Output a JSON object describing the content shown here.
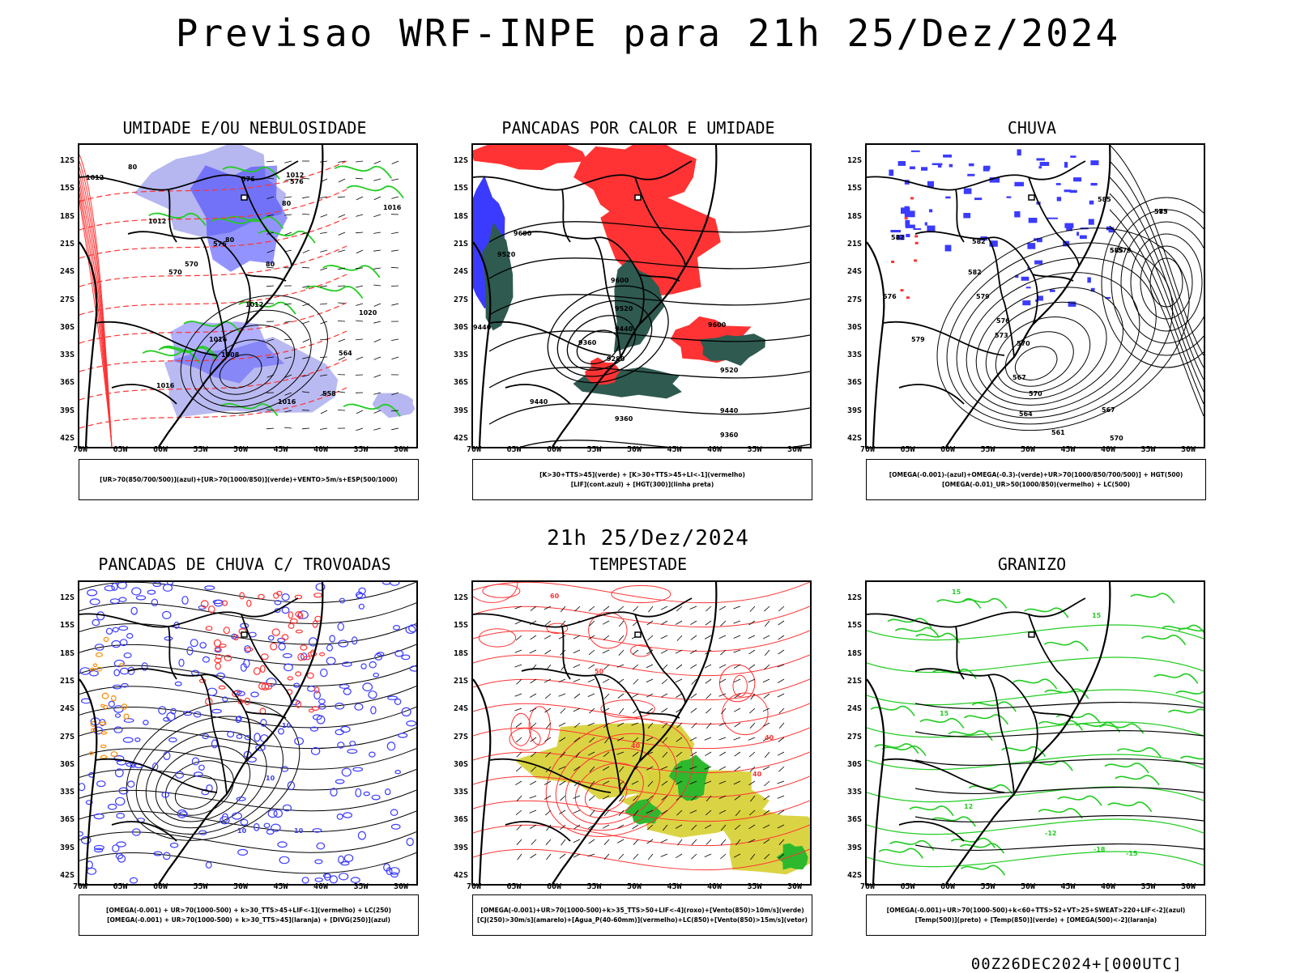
{
  "title": "Previsao WRF-INPE  para 21h 25/Dez/2024",
  "mid_time": "21h 25/Dez/2024",
  "footer": "00Z26DEC2024+[000UTC]",
  "lat_labels": [
    "12S",
    "15S",
    "18S",
    "21S",
    "24S",
    "27S",
    "30S",
    "33S",
    "36S",
    "39S",
    "42S"
  ],
  "lon_labels": [
    "70W",
    "65W",
    "60W",
    "55W",
    "50W",
    "45W",
    "40W",
    "35W",
    "30W"
  ],
  "panels": [
    {
      "title": "UMIDADE E/OU NEBULOSIDADE",
      "legend": [
        "[UR>70(850/700/500)](azul)+[UR>70(1000/850)](verde)+VENTO>5m/s+ESP(500/1000)"
      ],
      "contour_labels": [
        "1012",
        "1012",
        "1012",
        "1016",
        "1016",
        "1012",
        "1008",
        "1016",
        "1016",
        "1020",
        "570",
        "576",
        "576",
        "576",
        "558",
        "564",
        "570",
        "80",
        "80",
        "80",
        "80"
      ]
    },
    {
      "title": "PANCADAS POR CALOR E UMIDADE",
      "legend": [
        "[K>30+TTS>45](verde) + [K>30+TTS>45+LI<-1](vermelho)",
        "[LIF](cont.azul) + [HGT(300)](linha preta)"
      ],
      "contour_labels": [
        "9600",
        "9520",
        "9440",
        "9600",
        "9520",
        "9440",
        "9360",
        "9280",
        "9440",
        "9600",
        "9520",
        "9440",
        "9360",
        "9360"
      ]
    },
    {
      "title": "CHUVA",
      "legend": [
        "[OMEGA(-0.001)-(azul)+OMEGA(-0.3)-(verde)+UR>70(1000/850/700/500)] + HGT(500)",
        "[OMEGA(-0.01)_UR>50(1000/850)(vermelho) + LC(500)"
      ],
      "contour_labels": [
        "585",
        "585",
        "582",
        "582",
        "585",
        "582",
        "579",
        "579",
        "576",
        "573",
        "570",
        "567",
        "564",
        "561",
        "567",
        "570",
        "573",
        "576",
        "579",
        "585",
        "570"
      ]
    },
    {
      "title": "PANCADAS DE CHUVA C/ TROVOADAS",
      "legend": [
        "[OMEGA(-0.001) + UR>70(1000-500) + k>30_TTS>45+LIF<-1](vermelho) + LC(250)",
        "[OMEGA(-0.001) + UR>70(1000-500) + k>30_TTS>45](laranja) + [DIVG(250)](azul)"
      ],
      "contour_labels": [
        "10",
        "10",
        "10",
        "10"
      ]
    },
    {
      "title": "TEMPESTADE",
      "legend": [
        "[OMEGA(-0.001)+UR>70(1000-500)+k>35_TTS>50+LIF<-4](roxo)+[Vento(850)>10m/s](verde)",
        "[CJ(250)>30m/s](amarelo)+[Agua_P(40-60mm)](vermelho)+LC(850)+[Vento(850)>15m/s](vetor)"
      ],
      "contour_labels": [
        "60",
        "50",
        "40",
        "40",
        "40"
      ]
    },
    {
      "title": "GRANIZO",
      "legend": [
        "[OMEGA(-0.001)+UR>70(1000-500)+k<60+TTS>52+VT>25+SWEAT>220+LIF<-2](azul)",
        "[Temp(500)](preto) + [Temp(850)](verde) + [OMEGA(500)<-2](laranja)"
      ],
      "contour_labels": [
        "15",
        "15",
        "15",
        "12",
        "-12",
        "-18",
        "-15"
      ]
    }
  ],
  "colors": {
    "blue": "#3b3bff",
    "lightblue": "#aeaef0",
    "green": "#22cc22",
    "red": "#ff3333",
    "darkteal": "#2f5a50",
    "yellow": "#d8d23a",
    "orange": "#ff8c00"
  }
}
